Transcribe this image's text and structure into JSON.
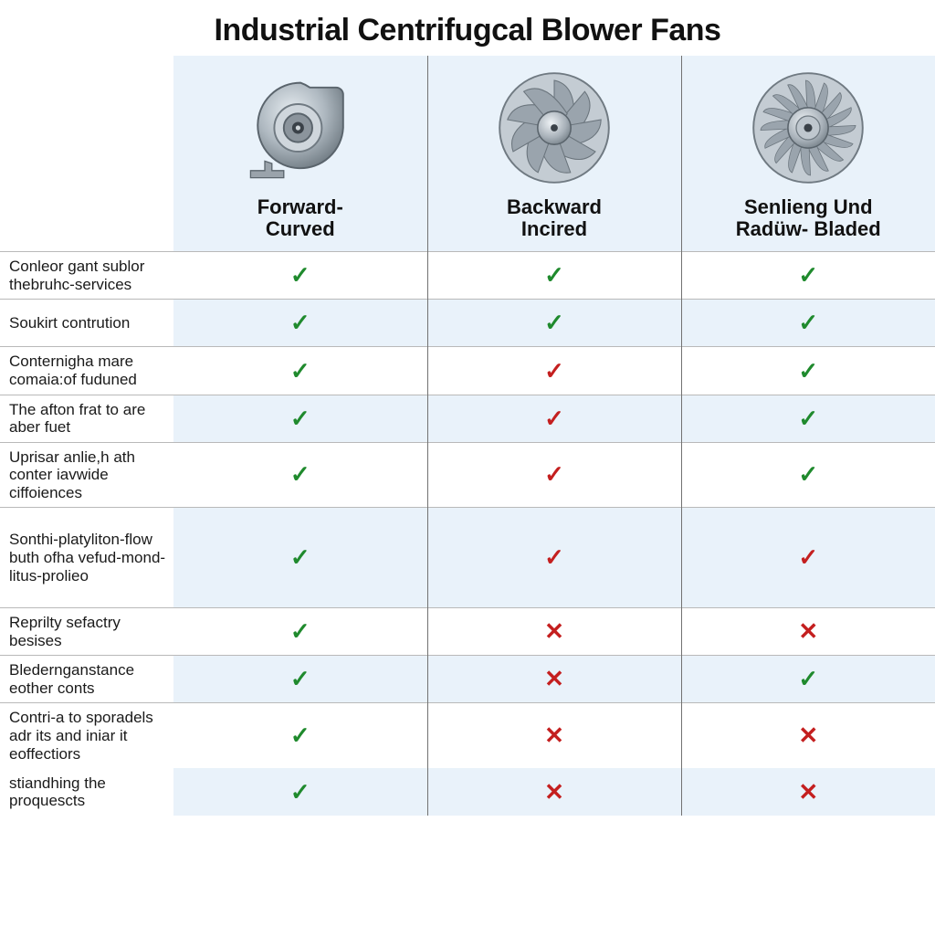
{
  "title": "Industrial Centrifugcal Blower Fans",
  "title_fontsize": 34,
  "title_color": "#111111",
  "layout": {
    "label_col_width": 190,
    "data_col_width": 278,
    "header_bg": "#e9f2fa",
    "row_bg_even": "#e9f2fa",
    "row_bg_odd": "#ffffff",
    "label_fontsize": 17,
    "label_color": "#1a1a1a",
    "header_fontsize": 22,
    "header_color": "#111111",
    "check_green": "#1f8a2d",
    "check_red": "#c41f1f",
    "cross_red": "#c41f1f",
    "mark_fontsize": 26
  },
  "columns": [
    {
      "key": "forward",
      "label_line1": "Forward-",
      "label_line2": "Curved",
      "icon": "blower"
    },
    {
      "key": "backward",
      "label_line1": "Backward",
      "label_line2": "Incired",
      "icon": "fan-wide"
    },
    {
      "key": "radial",
      "label_line1": "Senlieng Und",
      "label_line2": "Radüw- Bladed",
      "icon": "fan-many"
    }
  ],
  "rows": [
    {
      "label": "Conleor gant sublor thebruhc-services",
      "cells": [
        {
          "mark": "check",
          "color": "green"
        },
        {
          "mark": "check",
          "color": "green"
        },
        {
          "mark": "check",
          "color": "green"
        }
      ]
    },
    {
      "label": "Soukirt contrution",
      "cells": [
        {
          "mark": "check",
          "color": "green"
        },
        {
          "mark": "check",
          "color": "green"
        },
        {
          "mark": "check",
          "color": "green"
        }
      ]
    },
    {
      "label": "Conternigha mare comaia:of fuduned",
      "cells": [
        {
          "mark": "check",
          "color": "green"
        },
        {
          "mark": "check",
          "color": "red"
        },
        {
          "mark": "check",
          "color": "green"
        }
      ]
    },
    {
      "label": "The afton frat to are aber fuet",
      "cells": [
        {
          "mark": "check",
          "color": "green"
        },
        {
          "mark": "check",
          "color": "red"
        },
        {
          "mark": "check",
          "color": "green"
        }
      ]
    },
    {
      "label": "Uprisar anlie,h ath conter iavwide ciffoiences",
      "cells": [
        {
          "mark": "check",
          "color": "green"
        },
        {
          "mark": "check",
          "color": "red"
        },
        {
          "mark": "check",
          "color": "green"
        }
      ]
    },
    {
      "label": "Sonthi-platyliton-flow buth ofha vefud-mond-litus-prolieo",
      "cells": [
        {
          "mark": "check",
          "color": "green"
        },
        {
          "mark": "check",
          "color": "red"
        },
        {
          "mark": "check",
          "color": "red"
        }
      ]
    },
    {
      "label": "Reprilty sefactry besises",
      "cells": [
        {
          "mark": "check",
          "color": "green"
        },
        {
          "mark": "cross",
          "color": "red"
        },
        {
          "mark": "cross",
          "color": "red"
        }
      ]
    },
    {
      "label": "Bledernganstance eother conts",
      "cells": [
        {
          "mark": "check",
          "color": "green"
        },
        {
          "mark": "cross",
          "color": "red"
        },
        {
          "mark": "check",
          "color": "green"
        }
      ]
    },
    {
      "label": "Contri-a to sporadels adr its and iniar it eoffectiors",
      "cells": [
        {
          "mark": "check",
          "color": "green"
        },
        {
          "mark": "cross",
          "color": "red"
        },
        {
          "mark": "cross",
          "color": "red"
        }
      ]
    },
    {
      "label": "stiandhing the proquescts",
      "cells": [
        {
          "mark": "check",
          "color": "green"
        },
        {
          "mark": "cross",
          "color": "red"
        },
        {
          "mark": "cross",
          "color": "red"
        }
      ]
    }
  ],
  "tall_rows": [
    5
  ],
  "no_top_border_rows": [
    9
  ]
}
